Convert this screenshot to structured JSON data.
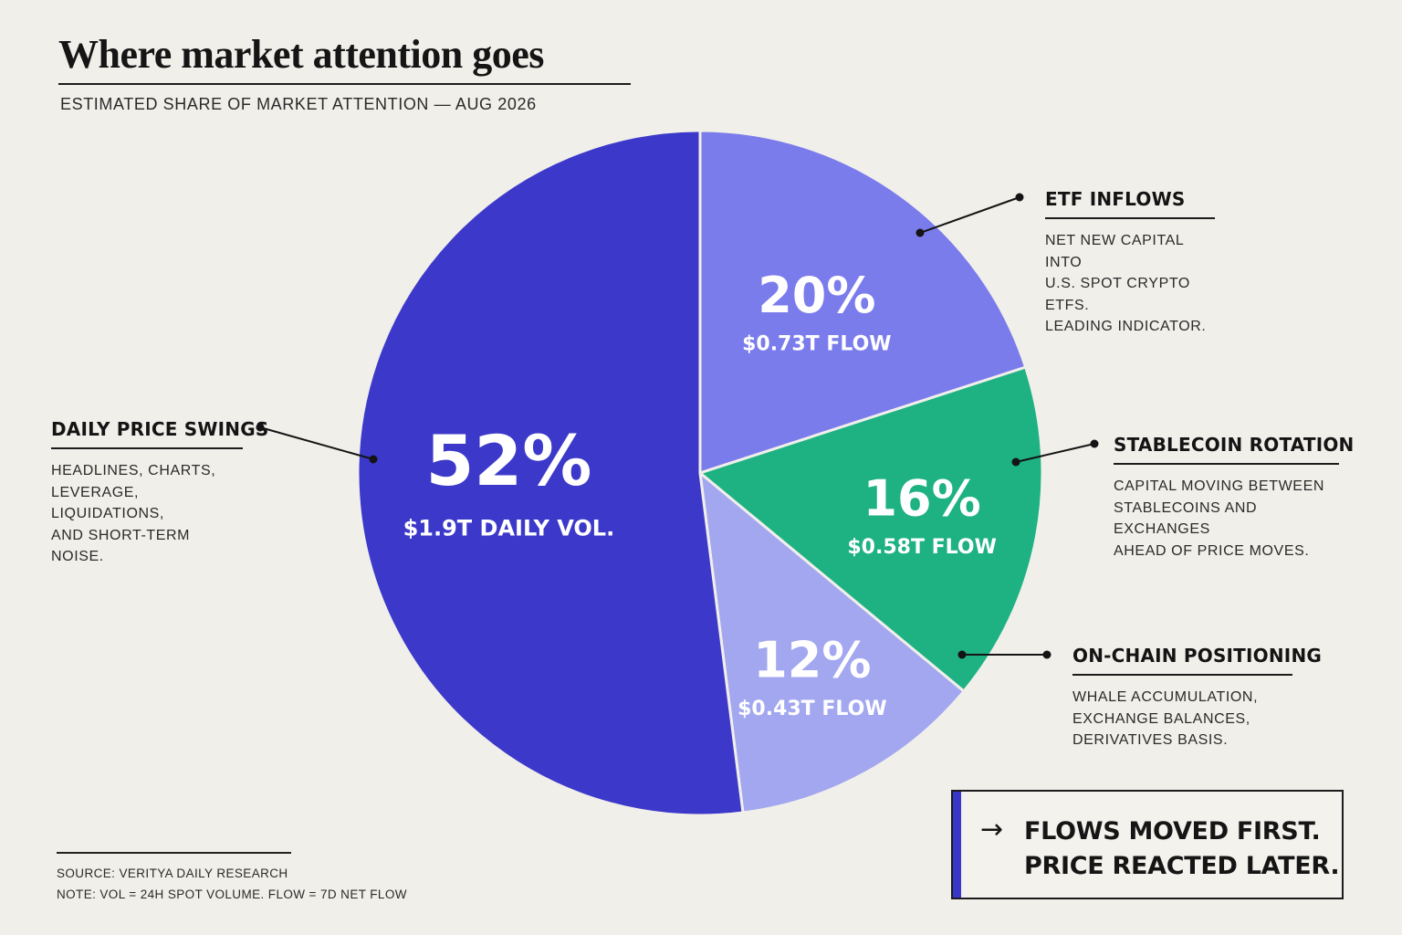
{
  "title": "Where market attention goes",
  "subtitle": "ESTIMATED SHARE OF MARKET ATTENTION — AUG 2026",
  "chart_data": {
    "type": "pie",
    "title": "Where market attention goes",
    "subtitle": "ESTIMATED SHARE OF MARKET ATTENTION — AUG 2026",
    "slices": [
      {
        "label": "ETF INFLOWS",
        "value": 20,
        "pct_label": "20%",
        "value_label": "$0.73T FLOW",
        "color": "#7b7cec",
        "description": "NET NEW CAPITAL INTO\nU.S. SPOT CRYPTO ETFS.\nLEADING INDICATOR."
      },
      {
        "label": "STABLECOIN ROTATION",
        "value": 16,
        "pct_label": "16%",
        "value_label": "$0.58T FLOW",
        "color": "#1eb283",
        "description": "CAPITAL MOVING BETWEEN\nSTABLECOINS AND EXCHANGES\nAHEAD OF PRICE MOVES."
      },
      {
        "label": "ON-CHAIN POSITIONING",
        "value": 12,
        "pct_label": "12%",
        "value_label": "$0.43T FLOW",
        "color": "#a2a7f0",
        "description": "WHALE ACCUMULATION,\nEXCHANGE BALANCES,\nDERIVATIVES BASIS."
      },
      {
        "label": "DAILY PRICE SWINGS",
        "value": 52,
        "pct_label": "52%",
        "value_label": "$1.9T DAILY VOL.",
        "color": "#3c39ca",
        "description": "HEADLINES, CHARTS,\nLEVERAGE, LIQUIDATIONS,\nAND SHORT-TERM NOISE."
      }
    ]
  },
  "footer": {
    "source": "SOURCE: VERITYA DAILY RESEARCH",
    "note": "NOTE: VOL = 24H SPOT VOLUME. FLOW = 7D NET FLOW"
  },
  "takeaway": {
    "arrow": "→",
    "line1": "FLOWS MOVED FIRST.",
    "line2": "PRICE REACTED LATER.",
    "accent": "#3a37c8"
  }
}
